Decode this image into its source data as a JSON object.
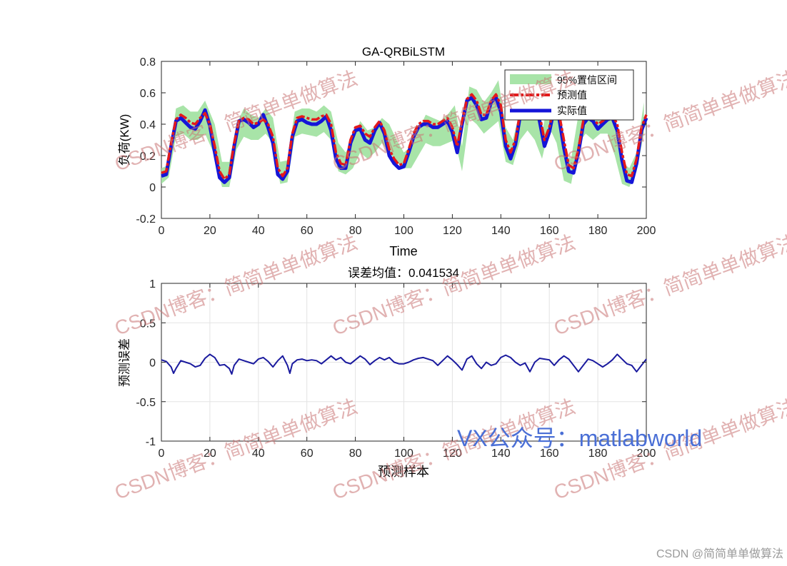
{
  "watermark": {
    "blog": "CSDN博客：简简单单做算法",
    "vx": "VX公众号：matlabworld",
    "footer": "CSDN @简简单单做算法"
  },
  "colors": {
    "predicted": "#e31a1c",
    "actual": "#1515d8",
    "band": "#a8e4a8",
    "error": "#1a1a9e"
  },
  "chart_data": [
    {
      "type": "line",
      "title": "GA-QRBiLSTM",
      "xlabel": "Time",
      "ylabel": "负荷(KW)",
      "xlim": [
        0,
        200
      ],
      "ylim": [
        -0.2,
        0.8
      ],
      "xticks": [
        0,
        20,
        40,
        60,
        80,
        100,
        120,
        140,
        160,
        180,
        200
      ],
      "yticks": [
        -0.2,
        0,
        0.2,
        0.4,
        0.6,
        0.8
      ],
      "grid": false,
      "legend_position": "top-right",
      "series": [
        {
          "name": "95%置信区间",
          "kind": "band",
          "x": [
            0,
            3,
            6,
            9,
            12,
            15,
            18,
            22,
            25,
            28,
            31,
            34,
            37,
            40,
            43,
            46,
            49,
            52,
            55,
            58,
            61,
            64,
            67,
            70,
            73,
            76,
            79,
            82,
            85,
            88,
            91,
            94,
            97,
            100,
            103,
            106,
            109,
            112,
            115,
            118,
            121,
            124,
            127,
            130,
            133,
            136,
            139,
            142,
            145,
            148,
            151,
            154,
            157,
            160,
            163,
            166,
            169,
            172,
            175,
            178,
            181,
            184,
            187,
            190,
            193,
            196,
            199
          ],
          "lower": [
            0.02,
            0.06,
            0.32,
            0.34,
            0.3,
            0.3,
            0.34,
            0.2,
            0.0,
            0.0,
            0.24,
            0.32,
            0.3,
            0.3,
            0.34,
            0.28,
            0.02,
            0.03,
            0.32,
            0.34,
            0.33,
            0.32,
            0.35,
            0.3,
            0.1,
            0.08,
            0.12,
            0.22,
            0.18,
            0.22,
            0.28,
            0.22,
            0.16,
            0.12,
            0.12,
            0.2,
            0.28,
            0.26,
            0.26,
            0.28,
            0.3,
            0.1,
            0.44,
            0.4,
            0.34,
            0.38,
            0.42,
            0.16,
            0.14,
            0.3,
            0.36,
            0.3,
            0.18,
            0.38,
            0.28,
            0.04,
            0.02,
            0.28,
            0.34,
            0.3,
            0.34,
            0.34,
            0.2,
            0.02,
            0.0,
            0.1,
            0.34
          ],
          "upper": [
            0.12,
            0.14,
            0.5,
            0.52,
            0.48,
            0.48,
            0.55,
            0.4,
            0.16,
            0.16,
            0.4,
            0.5,
            0.46,
            0.44,
            0.5,
            0.44,
            0.16,
            0.17,
            0.48,
            0.5,
            0.5,
            0.48,
            0.52,
            0.48,
            0.28,
            0.22,
            0.3,
            0.42,
            0.36,
            0.38,
            0.44,
            0.4,
            0.3,
            0.22,
            0.26,
            0.36,
            0.46,
            0.44,
            0.42,
            0.46,
            0.52,
            0.26,
            0.64,
            0.62,
            0.54,
            0.6,
            0.68,
            0.38,
            0.3,
            0.5,
            0.58,
            0.48,
            0.34,
            0.6,
            0.48,
            0.2,
            0.18,
            0.46,
            0.52,
            0.5,
            0.52,
            0.54,
            0.4,
            0.16,
            0.12,
            0.22,
            0.54
          ]
        },
        {
          "name": "预测值",
          "kind": "line",
          "x": [
            0,
            2,
            4,
            6,
            8,
            10,
            12,
            14,
            16,
            18,
            20,
            22,
            24,
            26,
            28,
            30,
            32,
            34,
            36,
            38,
            40,
            42,
            44,
            46,
            48,
            50,
            52,
            54,
            56,
            58,
            60,
            62,
            64,
            66,
            68,
            70,
            72,
            74,
            76,
            78,
            80,
            82,
            84,
            86,
            88,
            90,
            92,
            94,
            96,
            98,
            100,
            102,
            104,
            106,
            108,
            110,
            112,
            114,
            116,
            118,
            120,
            122,
            124,
            126,
            128,
            130,
            132,
            134,
            136,
            138,
            140,
            142,
            144,
            146,
            148,
            150,
            152,
            154,
            156,
            158,
            160,
            162,
            164,
            166,
            168,
            170,
            172,
            174,
            176,
            178,
            180,
            182,
            184,
            186,
            188,
            190,
            192,
            194,
            196,
            198,
            200
          ],
          "y": [
            0.09,
            0.1,
            0.28,
            0.43,
            0.46,
            0.44,
            0.41,
            0.4,
            0.44,
            0.47,
            0.4,
            0.26,
            0.1,
            0.05,
            0.08,
            0.28,
            0.42,
            0.44,
            0.43,
            0.4,
            0.41,
            0.43,
            0.4,
            0.32,
            0.12,
            0.07,
            0.12,
            0.34,
            0.44,
            0.45,
            0.44,
            0.43,
            0.43,
            0.45,
            0.46,
            0.4,
            0.22,
            0.15,
            0.14,
            0.3,
            0.38,
            0.39,
            0.34,
            0.32,
            0.38,
            0.42,
            0.36,
            0.24,
            0.18,
            0.14,
            0.15,
            0.24,
            0.34,
            0.4,
            0.42,
            0.42,
            0.4,
            0.4,
            0.42,
            0.44,
            0.38,
            0.26,
            0.42,
            0.56,
            0.59,
            0.55,
            0.46,
            0.46,
            0.55,
            0.59,
            0.52,
            0.3,
            0.22,
            0.3,
            0.48,
            0.55,
            0.56,
            0.54,
            0.46,
            0.3,
            0.38,
            0.52,
            0.47,
            0.3,
            0.14,
            0.12,
            0.24,
            0.42,
            0.46,
            0.44,
            0.4,
            0.42,
            0.45,
            0.46,
            0.4,
            0.22,
            0.08,
            0.07,
            0.18,
            0.38,
            0.46
          ]
        },
        {
          "name": "实际值",
          "kind": "line",
          "x": [
            0,
            2,
            4,
            6,
            8,
            10,
            12,
            14,
            16,
            18,
            20,
            22,
            24,
            26,
            28,
            30,
            32,
            34,
            36,
            38,
            40,
            42,
            44,
            46,
            48,
            50,
            52,
            54,
            56,
            58,
            60,
            62,
            64,
            66,
            68,
            70,
            72,
            74,
            76,
            78,
            80,
            82,
            84,
            86,
            88,
            90,
            92,
            94,
            96,
            98,
            100,
            102,
            104,
            106,
            108,
            110,
            112,
            114,
            116,
            118,
            120,
            122,
            124,
            126,
            128,
            130,
            132,
            134,
            136,
            138,
            140,
            142,
            144,
            146,
            148,
            150,
            152,
            154,
            156,
            158,
            160,
            162,
            164,
            166,
            168,
            170,
            172,
            174,
            176,
            178,
            180,
            182,
            184,
            186,
            188,
            190,
            192,
            194,
            196,
            198,
            200
          ],
          "y": [
            0.07,
            0.08,
            0.26,
            0.42,
            0.44,
            0.41,
            0.38,
            0.37,
            0.42,
            0.49,
            0.39,
            0.22,
            0.06,
            0.03,
            0.06,
            0.26,
            0.42,
            0.43,
            0.41,
            0.38,
            0.4,
            0.46,
            0.38,
            0.28,
            0.08,
            0.05,
            0.1,
            0.32,
            0.42,
            0.43,
            0.41,
            0.4,
            0.4,
            0.42,
            0.45,
            0.36,
            0.18,
            0.12,
            0.12,
            0.28,
            0.36,
            0.37,
            0.3,
            0.28,
            0.36,
            0.41,
            0.34,
            0.2,
            0.15,
            0.12,
            0.13,
            0.22,
            0.32,
            0.38,
            0.4,
            0.4,
            0.38,
            0.38,
            0.4,
            0.42,
            0.35,
            0.22,
            0.4,
            0.55,
            0.57,
            0.52,
            0.43,
            0.44,
            0.54,
            0.57,
            0.48,
            0.26,
            0.18,
            0.27,
            0.46,
            0.53,
            0.54,
            0.52,
            0.42,
            0.26,
            0.35,
            0.5,
            0.44,
            0.25,
            0.1,
            0.09,
            0.22,
            0.4,
            0.44,
            0.42,
            0.37,
            0.4,
            0.43,
            0.44,
            0.36,
            0.17,
            0.04,
            0.03,
            0.15,
            0.36,
            0.44
          ]
        }
      ]
    },
    {
      "type": "line",
      "title": "误差均值：0.041534",
      "xlabel": "预测样本",
      "ylabel": "预测误差",
      "xlim": [
        0,
        200
      ],
      "ylim": [
        -1,
        1
      ],
      "xticks": [
        0,
        20,
        40,
        60,
        80,
        100,
        120,
        140,
        160,
        180,
        200
      ],
      "yticks": [
        -1,
        -0.5,
        0,
        0.5,
        1
      ],
      "grid": true,
      "series": [
        {
          "kind": "line",
          "x": [
            0,
            2,
            4,
            5,
            6,
            8,
            10,
            12,
            14,
            16,
            18,
            20,
            22,
            24,
            26,
            28,
            29,
            30,
            32,
            34,
            36,
            38,
            40,
            42,
            44,
            46,
            48,
            50,
            52,
            53,
            54,
            56,
            58,
            60,
            62,
            64,
            66,
            68,
            70,
            72,
            74,
            76,
            78,
            80,
            82,
            84,
            86,
            88,
            90,
            92,
            94,
            96,
            98,
            100,
            102,
            104,
            106,
            108,
            110,
            112,
            114,
            116,
            118,
            120,
            122,
            124,
            126,
            128,
            130,
            132,
            134,
            136,
            138,
            140,
            142,
            144,
            146,
            148,
            150,
            152,
            154,
            156,
            158,
            160,
            162,
            164,
            166,
            168,
            170,
            172,
            174,
            176,
            178,
            180,
            182,
            184,
            186,
            188,
            190,
            192,
            194,
            196,
            198,
            200
          ],
          "y": [
            0.03,
            0.01,
            -0.06,
            -0.14,
            -0.08,
            0.02,
            0.0,
            -0.02,
            -0.06,
            -0.04,
            0.05,
            0.1,
            0.06,
            -0.04,
            -0.03,
            -0.08,
            -0.15,
            -0.04,
            0.04,
            0.02,
            0.0,
            -0.02,
            0.04,
            0.06,
            0.01,
            -0.06,
            0.02,
            0.08,
            -0.04,
            -0.14,
            -0.02,
            0.03,
            0.04,
            0.02,
            0.03,
            0.02,
            -0.02,
            0.03,
            0.08,
            0.03,
            0.06,
            0.0,
            -0.02,
            0.03,
            0.08,
            0.04,
            -0.03,
            0.02,
            0.06,
            0.03,
            0.06,
            0.0,
            -0.02,
            -0.02,
            0.0,
            0.03,
            0.05,
            0.06,
            0.04,
            0.02,
            -0.04,
            0.02,
            0.08,
            0.03,
            -0.03,
            -0.1,
            0.04,
            0.08,
            -0.02,
            -0.08,
            0.0,
            -0.04,
            -0.02,
            0.06,
            0.09,
            0.06,
            0.0,
            -0.04,
            -0.01,
            -0.12,
            0.0,
            0.05,
            0.04,
            0.03,
            -0.04,
            0.03,
            0.08,
            0.04,
            -0.04,
            -0.12,
            -0.04,
            0.04,
            0.02,
            -0.02,
            -0.06,
            -0.02,
            0.03,
            0.1,
            0.04,
            -0.02,
            -0.04,
            -0.12,
            -0.04,
            0.04
          ]
        }
      ]
    }
  ]
}
